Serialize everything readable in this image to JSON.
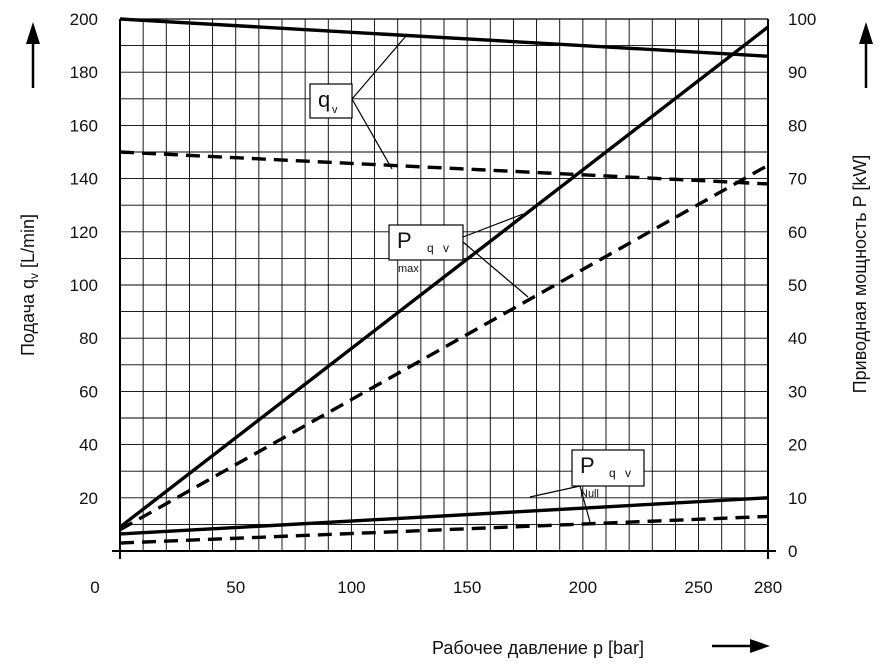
{
  "chart_data": {
    "type": "line",
    "x_axis": {
      "label": "Рабочее давление p [bar]",
      "ticks": [
        0,
        50,
        100,
        150,
        200,
        250,
        280
      ],
      "range": [
        0,
        280
      ],
      "minor_step": 10
    },
    "y_left": {
      "label": "Подача q",
      "label_sub": "v",
      "label_unit": " [L/min]",
      "ticks": [
        20,
        40,
        60,
        80,
        100,
        120,
        140,
        160,
        180,
        200
      ],
      "range": [
        0,
        200
      ],
      "minor_step": 10
    },
    "y_right": {
      "label": "Приводная мощность P [kW]",
      "ticks": [
        0,
        10,
        20,
        30,
        40,
        50,
        60,
        70,
        80,
        90,
        100
      ],
      "range": [
        0,
        100
      ]
    },
    "grid": true,
    "series": [
      {
        "style": "solid",
        "axis": "left",
        "x": [
          0,
          280
        ],
        "y": [
          200,
          186
        ]
      },
      {
        "style": "dashed",
        "axis": "left",
        "x": [
          0,
          280
        ],
        "y": [
          150,
          138
        ]
      },
      {
        "style": "solid",
        "axis": "right",
        "x": [
          0,
          280
        ],
        "y": [
          4.5,
          98.5
        ]
      },
      {
        "style": "dashed",
        "axis": "right",
        "x": [
          0,
          280
        ],
        "y": [
          4,
          72.5
        ]
      },
      {
        "style": "solid",
        "axis": "right",
        "x": [
          0,
          280
        ],
        "y": [
          3.2,
          10
        ]
      },
      {
        "style": "dashed",
        "axis": "right",
        "x": [
          0,
          280
        ],
        "y": [
          1.5,
          6.5
        ]
      }
    ],
    "annotations": {
      "qv": {
        "main": "q",
        "sub": "v"
      },
      "pmax": {
        "main": "P",
        "idx": "q v",
        "sub": "max"
      },
      "pnull": {
        "main": "P",
        "idx": "q v",
        "sub": "Null"
      }
    }
  }
}
